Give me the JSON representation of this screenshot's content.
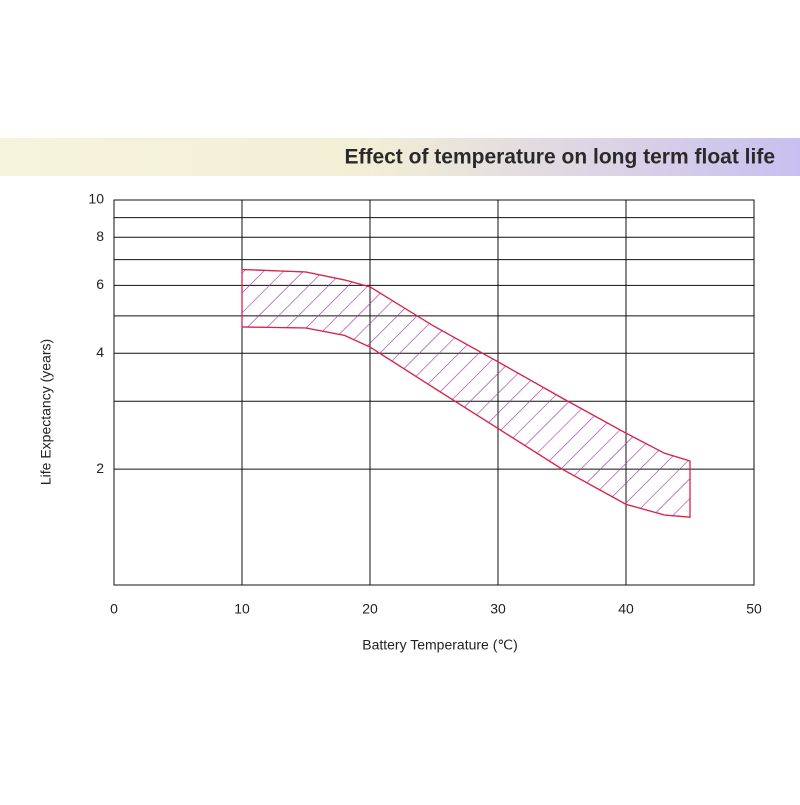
{
  "chart_data": {
    "type": "band",
    "title": "Effect of temperature on long term float life",
    "x_label": "Battery Temperature  (℃)",
    "y_label": "Life Expectancy (years)",
    "x": [
      10,
      15,
      18,
      20,
      25,
      30,
      35,
      40,
      43,
      45
    ],
    "series": [
      {
        "color": "#d9234a",
        "values": [
          6.6,
          6.5,
          6.2,
          5.95,
          4.7,
          3.8,
          3.06,
          2.48,
          2.2,
          2.1
        ]
      },
      {
        "color": "#d9234a",
        "values": [
          4.68,
          4.65,
          4.45,
          4.15,
          3.25,
          2.55,
          2.0,
          1.62,
          1.52,
          1.5
        ]
      }
    ],
    "hatch_color": "#9b2fae",
    "xlim": [
      0,
      50
    ],
    "xticks": [
      0,
      10,
      20,
      30,
      40,
      50
    ],
    "ylim": [
      1,
      10
    ],
    "yticks": [
      2,
      4,
      6,
      8,
      10
    ],
    "y_minor_grid": [
      3,
      5,
      7,
      9
    ],
    "log_y": true,
    "grid": true
  }
}
